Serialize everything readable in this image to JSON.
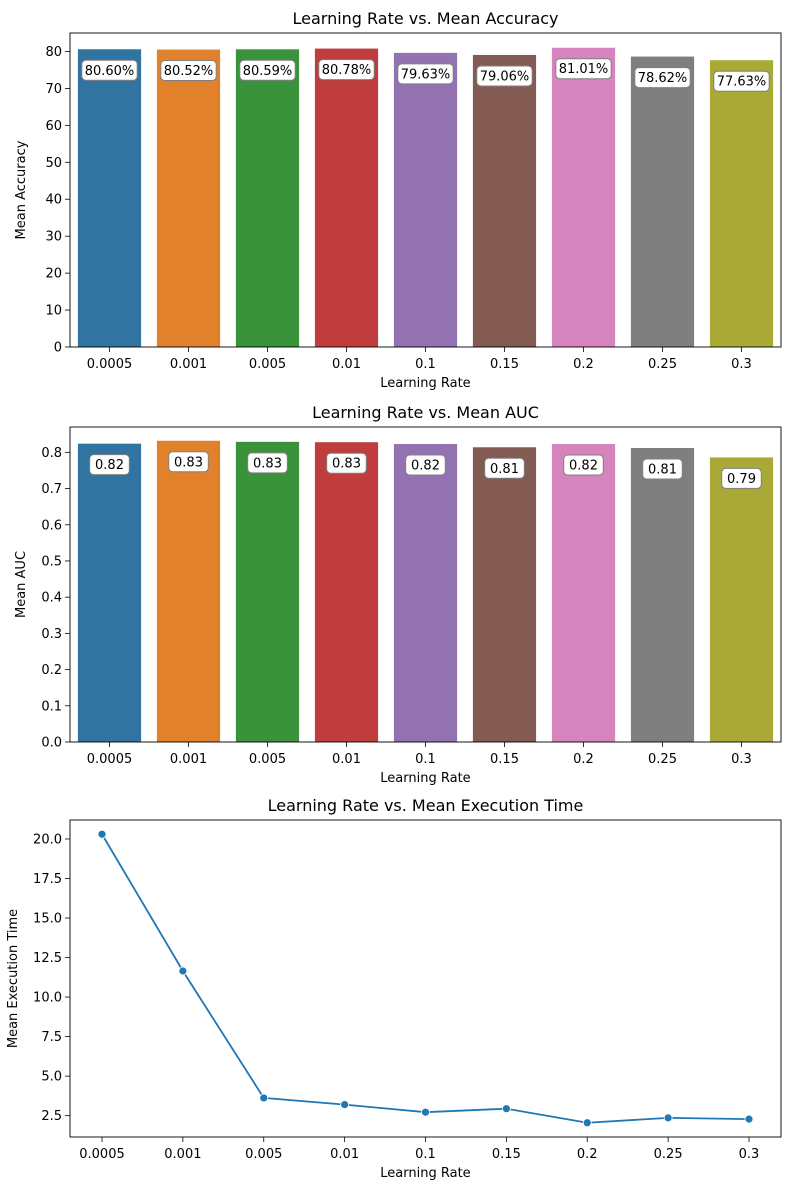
{
  "chart_data": [
    {
      "type": "bar",
      "title": "Learning Rate vs. Mean Accuracy",
      "xlabel": "Learning Rate",
      "ylabel": "Mean Accuracy",
      "categories": [
        "0.0005",
        "0.001",
        "0.005",
        "0.01",
        "0.1",
        "0.15",
        "0.2",
        "0.25",
        "0.3"
      ],
      "values": [
        80.6,
        80.52,
        80.59,
        80.78,
        79.63,
        79.06,
        81.01,
        78.62,
        77.63
      ],
      "labels": [
        "80.60%",
        "80.52%",
        "80.59%",
        "80.78%",
        "79.63%",
        "79.06%",
        "81.01%",
        "78.62%",
        "77.63%"
      ],
      "colors": [
        "#3274a1",
        "#e1812c",
        "#3a923a",
        "#c03d3e",
        "#9372b2",
        "#845b53",
        "#d684bd",
        "#7f7f7f",
        "#a9aa35"
      ],
      "ylim": [
        0,
        85
      ],
      "yticks": [
        0,
        10,
        20,
        30,
        40,
        50,
        60,
        70,
        80
      ],
      "yticklabels": [
        "0",
        "10",
        "20",
        "30",
        "40",
        "50",
        "60",
        "70",
        "80"
      ]
    },
    {
      "type": "bar",
      "title": "Learning Rate vs. Mean AUC",
      "xlabel": "Learning Rate",
      "ylabel": "Mean AUC",
      "categories": [
        "0.0005",
        "0.001",
        "0.005",
        "0.01",
        "0.1",
        "0.15",
        "0.2",
        "0.25",
        "0.3"
      ],
      "values": [
        0.824,
        0.832,
        0.829,
        0.828,
        0.823,
        0.814,
        0.823,
        0.812,
        0.786
      ],
      "labels": [
        "0.82",
        "0.83",
        "0.83",
        "0.83",
        "0.82",
        "0.81",
        "0.82",
        "0.81",
        "0.79"
      ],
      "colors": [
        "#3274a1",
        "#e1812c",
        "#3a923a",
        "#c03d3e",
        "#9372b2",
        "#845b53",
        "#d684bd",
        "#7f7f7f",
        "#a9aa35"
      ],
      "ylim": [
        0,
        0.87
      ],
      "yticks": [
        0,
        0.1,
        0.2,
        0.3,
        0.4,
        0.5,
        0.6,
        0.7,
        0.8
      ],
      "yticklabels": [
        "0.0",
        "0.1",
        "0.2",
        "0.3",
        "0.4",
        "0.5",
        "0.6",
        "0.7",
        "0.8"
      ]
    },
    {
      "type": "line",
      "title": "Learning Rate vs. Mean Execution Time",
      "xlabel": "Learning Rate",
      "ylabel": "Mean Execution Time",
      "categories": [
        "0.0005",
        "0.001",
        "0.005",
        "0.01",
        "0.1",
        "0.15",
        "0.2",
        "0.25",
        "0.3"
      ],
      "values": [
        20.3,
        11.65,
        3.62,
        3.2,
        2.72,
        2.94,
        2.05,
        2.36,
        2.28
      ],
      "color": "#1f77b4",
      "marker": "circle",
      "ylim": [
        1.15,
        21.2
      ],
      "yticks": [
        2.5,
        5.0,
        7.5,
        10.0,
        12.5,
        15.0,
        17.5,
        20.0
      ],
      "yticklabels": [
        "2.5",
        "5.0",
        "7.5",
        "10.0",
        "12.5",
        "15.0",
        "17.5",
        "20.0"
      ]
    }
  ]
}
